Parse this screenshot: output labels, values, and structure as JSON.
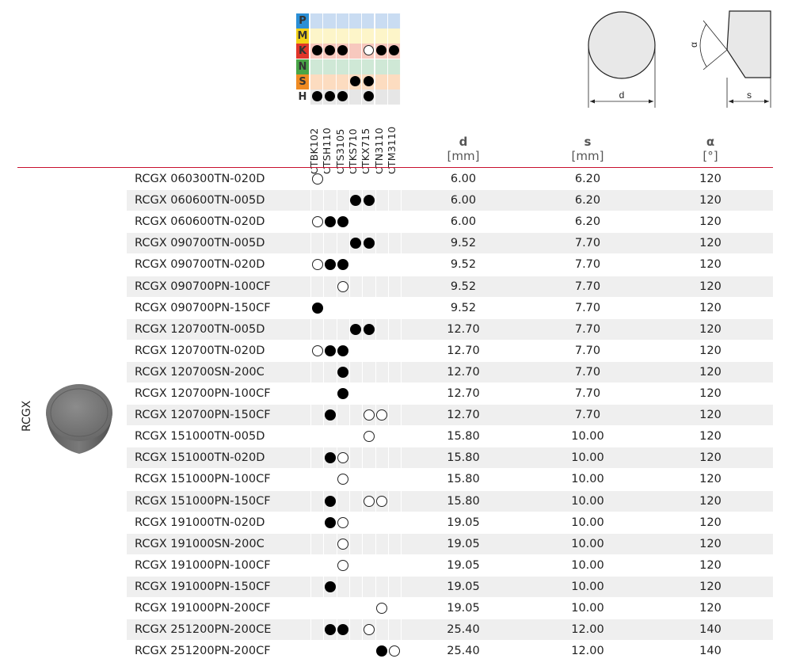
{
  "family": "RCGX",
  "iso": {
    "materials": [
      {
        "letter": "P",
        "color": "#2b8fd6",
        "bg": "#c9dcf2"
      },
      {
        "letter": "M",
        "color": "#f3d21a",
        "bg": "#fdf5c9"
      },
      {
        "letter": "K",
        "color": "#e1352a",
        "bg": "#f7c8be"
      },
      {
        "letter": "N",
        "color": "#49a547",
        "bg": "#cfe8d6"
      },
      {
        "letter": "S",
        "color": "#ef8b23",
        "bg": "#fcdcc0"
      },
      {
        "letter": "H",
        "color": "#9b9b9b",
        "bg": "#e6e6e6"
      }
    ],
    "marks": {
      "P": [
        "",
        "",
        "",
        "",
        "",
        "",
        ""
      ],
      "M": [
        "",
        "",
        "",
        "",
        "",
        "",
        ""
      ],
      "K": [
        "filled",
        "filled",
        "filled",
        "",
        "open",
        "filled",
        "filled"
      ],
      "N": [
        "",
        "",
        "",
        "",
        "",
        "",
        ""
      ],
      "S": [
        "",
        "",
        "",
        "filled",
        "filled",
        "",
        ""
      ],
      "H": [
        "filled",
        "filled",
        "filled",
        "",
        "filled",
        "",
        ""
      ]
    }
  },
  "grades": [
    "CTBK102",
    "CTSH110",
    "CTS3105",
    "CTKS710",
    "CTKX715",
    "CTN3110",
    "CTM3110"
  ],
  "columns": {
    "d": {
      "symbol": "d",
      "unit": "[mm]"
    },
    "s": {
      "symbol": "s",
      "unit": "[mm]"
    },
    "alpha": {
      "symbol": "α",
      "unit": "[°]"
    }
  },
  "diagram": {
    "d_label": "d",
    "s_label": "s",
    "alpha_label": "α"
  },
  "rows": [
    {
      "designation": "RCGX 060300TN-020D",
      "d": "6.00",
      "s": "6.20",
      "alpha": "120",
      "grades": [
        "open",
        "",
        "",
        "",
        "",
        "",
        ""
      ]
    },
    {
      "designation": "RCGX 060600TN-005D",
      "d": "6.00",
      "s": "6.20",
      "alpha": "120",
      "grades": [
        "",
        "",
        "",
        "filled",
        "filled",
        "",
        ""
      ]
    },
    {
      "designation": "RCGX 060600TN-020D",
      "d": "6.00",
      "s": "6.20",
      "alpha": "120",
      "grades": [
        "open",
        "filled",
        "filled",
        "",
        "",
        "",
        ""
      ]
    },
    {
      "designation": "RCGX 090700TN-005D",
      "d": "9.52",
      "s": "7.70",
      "alpha": "120",
      "grades": [
        "",
        "",
        "",
        "filled",
        "filled",
        "",
        ""
      ]
    },
    {
      "designation": "RCGX 090700TN-020D",
      "d": "9.52",
      "s": "7.70",
      "alpha": "120",
      "grades": [
        "open",
        "filled",
        "filled",
        "",
        "",
        "",
        ""
      ]
    },
    {
      "designation": "RCGX 090700PN-100CF",
      "d": "9.52",
      "s": "7.70",
      "alpha": "120",
      "grades": [
        "",
        "",
        "open",
        "",
        "",
        "",
        ""
      ]
    },
    {
      "designation": "RCGX 090700PN-150CF",
      "d": "9.52",
      "s": "7.70",
      "alpha": "120",
      "grades": [
        "filled",
        "",
        "",
        "",
        "",
        "",
        ""
      ]
    },
    {
      "designation": "RCGX 120700TN-005D",
      "d": "12.70",
      "s": "7.70",
      "alpha": "120",
      "grades": [
        "",
        "",
        "",
        "filled",
        "filled",
        "",
        ""
      ]
    },
    {
      "designation": "RCGX 120700TN-020D",
      "d": "12.70",
      "s": "7.70",
      "alpha": "120",
      "grades": [
        "open",
        "filled",
        "filled",
        "",
        "",
        "",
        ""
      ]
    },
    {
      "designation": "RCGX 120700SN-200C",
      "d": "12.70",
      "s": "7.70",
      "alpha": "120",
      "grades": [
        "",
        "",
        "filled",
        "",
        "",
        "",
        ""
      ]
    },
    {
      "designation": "RCGX 120700PN-100CF",
      "d": "12.70",
      "s": "7.70",
      "alpha": "120",
      "grades": [
        "",
        "",
        "filled",
        "",
        "",
        "",
        ""
      ]
    },
    {
      "designation": "RCGX 120700PN-150CF",
      "d": "12.70",
      "s": "7.70",
      "alpha": "120",
      "grades": [
        "",
        "filled",
        "",
        "",
        "open",
        "open",
        ""
      ]
    },
    {
      "designation": "RCGX 151000TN-005D",
      "d": "15.80",
      "s": "10.00",
      "alpha": "120",
      "grades": [
        "",
        "",
        "",
        "",
        "open",
        "",
        ""
      ]
    },
    {
      "designation": "RCGX 151000TN-020D",
      "d": "15.80",
      "s": "10.00",
      "alpha": "120",
      "grades": [
        "",
        "filled",
        "open",
        "",
        "",
        "",
        ""
      ]
    },
    {
      "designation": "RCGX 151000PN-100CF",
      "d": "15.80",
      "s": "10.00",
      "alpha": "120",
      "grades": [
        "",
        "",
        "open",
        "",
        "",
        "",
        ""
      ]
    },
    {
      "designation": "RCGX 151000PN-150CF",
      "d": "15.80",
      "s": "10.00",
      "alpha": "120",
      "grades": [
        "",
        "filled",
        "",
        "",
        "open",
        "open",
        ""
      ]
    },
    {
      "designation": "RCGX 191000TN-020D",
      "d": "19.05",
      "s": "10.00",
      "alpha": "120",
      "grades": [
        "",
        "filled",
        "open",
        "",
        "",
        "",
        ""
      ]
    },
    {
      "designation": "RCGX 191000SN-200C",
      "d": "19.05",
      "s": "10.00",
      "alpha": "120",
      "grades": [
        "",
        "",
        "open",
        "",
        "",
        "",
        ""
      ]
    },
    {
      "designation": "RCGX 191000PN-100CF",
      "d": "19.05",
      "s": "10.00",
      "alpha": "120",
      "grades": [
        "",
        "",
        "open",
        "",
        "",
        "",
        ""
      ]
    },
    {
      "designation": "RCGX 191000PN-150CF",
      "d": "19.05",
      "s": "10.00",
      "alpha": "120",
      "grades": [
        "",
        "filled",
        "",
        "",
        "",
        "",
        ""
      ]
    },
    {
      "designation": "RCGX 191000PN-200CF",
      "d": "19.05",
      "s": "10.00",
      "alpha": "120",
      "grades": [
        "",
        "",
        "",
        "",
        "",
        "open",
        ""
      ]
    },
    {
      "designation": "RCGX 251200PN-200CE",
      "d": "25.40",
      "s": "12.00",
      "alpha": "140",
      "grades": [
        "",
        "filled",
        "filled",
        "",
        "open",
        "",
        ""
      ]
    },
    {
      "designation": "RCGX 251200PN-200CF",
      "d": "25.40",
      "s": "12.00",
      "alpha": "140",
      "grades": [
        "",
        "",
        "",
        "",
        "",
        "filled",
        "open"
      ]
    }
  ]
}
